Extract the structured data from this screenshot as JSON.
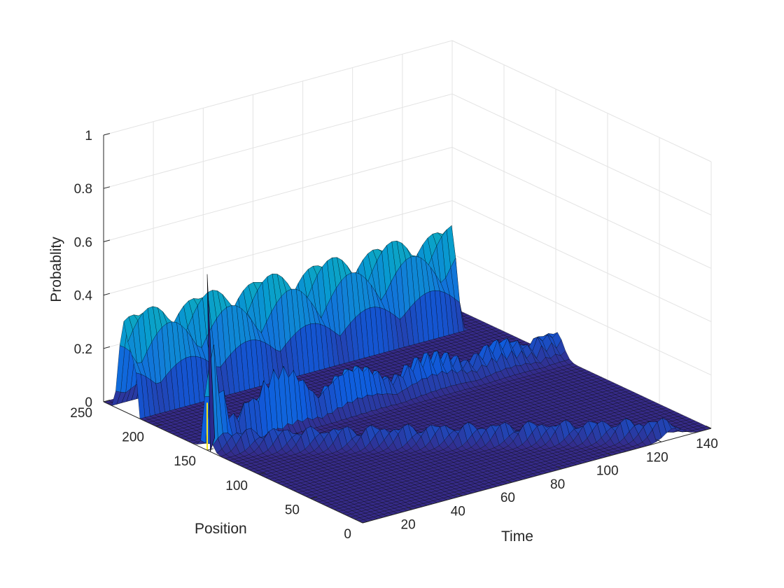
{
  "chart_data": {
    "type": "surface",
    "title": "",
    "xlabel": "Time",
    "ylabel": "Position",
    "zlabel": "Probablity",
    "xlim": [
      0,
      140
    ],
    "ylim": [
      0,
      250
    ],
    "zlim": [
      0,
      1
    ],
    "xticks": [
      20,
      40,
      60,
      80,
      100,
      120,
      140
    ],
    "yticks": [
      0,
      50,
      100,
      150,
      200,
      250
    ],
    "zticks": [
      0,
      0.2,
      0.4,
      0.6,
      0.8,
      1
    ],
    "xtick_labels": [
      "20",
      "40",
      "60",
      "80",
      "100",
      "120",
      "140"
    ],
    "ytick_labels": [
      "0",
      "50",
      "100",
      "150",
      "200",
      "250"
    ],
    "ztick_labels": [
      "0",
      "0.2",
      "0.4",
      "0.6",
      "0.8",
      "1"
    ],
    "grid": true,
    "colormap": "parula",
    "edge_color": "#000000",
    "initial_position": 150,
    "initial_peak": 0.66,
    "recurrence_times": [
      0,
      17,
      44,
      74,
      105,
      130
    ],
    "recurrence_heights": [
      0.66,
      0.36,
      0.21,
      0.15,
      0.12,
      0.1
    ],
    "boundary_band": {
      "position_range": [
        215,
        240
      ],
      "time_range": [
        0,
        130
      ],
      "peak_probability": 0.42
    },
    "secondary_front": {
      "time_range": [
        0,
        135
      ],
      "probability": 0.08
    }
  }
}
